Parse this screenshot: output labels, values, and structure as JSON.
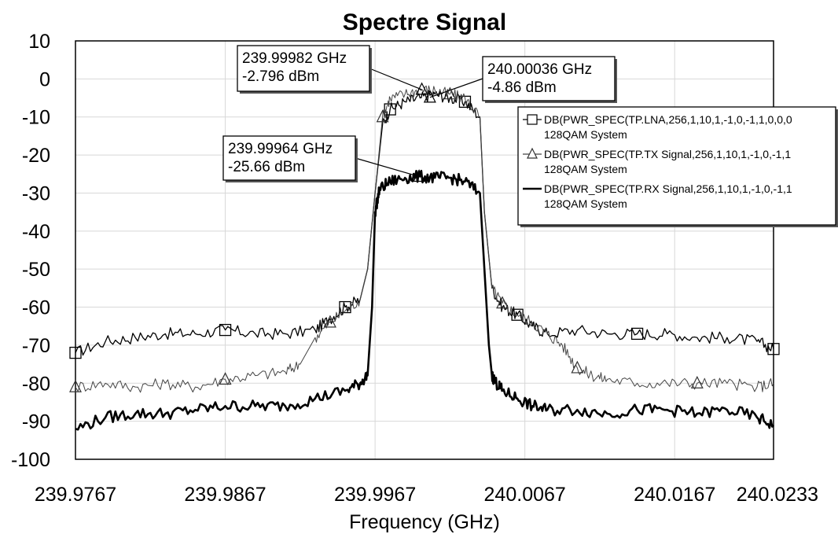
{
  "chart_data": {
    "type": "line",
    "title": "Spectre Signal",
    "xlabel": "Frequency (GHz)",
    "ylabel": "",
    "xlim": [
      239.9767,
      240.0233
    ],
    "ylim": [
      -100,
      10
    ],
    "x_ticks": [
      "239.9767",
      "239.9867",
      "239.9967",
      "240.0067",
      "240.0167",
      "240.0233"
    ],
    "y_ticks": [
      "10",
      "0",
      "-10",
      "-20",
      "-30",
      "-40",
      "-50",
      "-60",
      "-70",
      "-80",
      "-90",
      "-100"
    ],
    "grid": true,
    "legend_position": "top-right",
    "series": [
      {
        "name": "DB(PWR_SPEC(TP.LNA,256,1,10,1,-1,0,-1,1,0,0,0",
        "subname": "128QAM System",
        "marker": "square",
        "color": "#000000",
        "x": [
          239.9767,
          239.9787,
          239.9807,
          239.9827,
          239.9847,
          239.9867,
          239.9887,
          239.9907,
          239.9927,
          239.9937,
          239.9947,
          239.9957,
          239.9962,
          239.9967,
          239.9972,
          239.9977,
          239.9987,
          239.9997,
          240.0007,
          240.0017,
          240.0027,
          240.0037,
          240.004,
          240.0045,
          240.0052,
          240.0062,
          240.0072,
          240.0082,
          240.0102,
          240.0122,
          240.0142,
          240.0162,
          240.0182,
          240.0202,
          240.0222,
          240.0233
        ],
        "values": [
          -72,
          -69,
          -68,
          -67,
          -67,
          -66,
          -67,
          -67,
          -66,
          -63,
          -60,
          -58,
          -50,
          -30,
          -12,
          -8,
          -6,
          -5,
          -4,
          -5,
          -6,
          -10,
          -35,
          -55,
          -60,
          -62,
          -65,
          -67,
          -66,
          -67,
          -67,
          -67,
          -68,
          -68,
          -69,
          -71
        ]
      },
      {
        "name": "DB(PWR_SPEC(TP.TX Signal,256,1,10,1,-1,0,-1,1",
        "subname": "128QAM System",
        "marker": "triangle",
        "color": "#444444",
        "x": [
          239.9767,
          239.9787,
          239.9807,
          239.9827,
          239.9847,
          239.9867,
          239.9887,
          239.9907,
          239.9917,
          239.9927,
          239.9937,
          239.9947,
          239.9957,
          239.9962,
          239.9967,
          239.9972,
          239.9977,
          239.9987,
          239.9997,
          240.0007,
          240.0017,
          240.0027,
          240.0037,
          240.004,
          240.0045,
          240.0052,
          240.0062,
          240.0072,
          240.0082,
          240.0092,
          240.0102,
          240.0112,
          240.0122,
          240.0142,
          240.0162,
          240.0182,
          240.0202,
          240.0222,
          240.0233
        ],
        "values": [
          -81,
          -80,
          -81,
          -80,
          -81,
          -79,
          -78,
          -77,
          -75,
          -68,
          -64,
          -61,
          -58,
          -50,
          -30,
          -10,
          -5,
          -4,
          -2.8,
          -3,
          -4,
          -5,
          -10,
          -35,
          -55,
          -59,
          -62,
          -64,
          -67,
          -70,
          -76,
          -78,
          -79,
          -80,
          -80,
          -80,
          -80,
          -81,
          -80
        ]
      },
      {
        "name": "DB(PWR_SPEC(TP.RX Signal,256,1,10,1,-1,0,-1,1",
        "subname": "128QAM System",
        "marker": "none",
        "color": "#000000",
        "x": [
          239.9767,
          239.9787,
          239.9807,
          239.9827,
          239.9847,
          239.9867,
          239.9887,
          239.9907,
          239.9927,
          239.9947,
          239.9957,
          239.9962,
          239.9965,
          239.9967,
          239.997,
          239.9977,
          239.9987,
          239.9997,
          240.0007,
          240.0017,
          240.0027,
          240.0037,
          240.004,
          240.0043,
          240.0045,
          240.0048,
          240.0052,
          240.0062,
          240.0072,
          240.0082,
          240.0102,
          240.0122,
          240.0142,
          240.0162,
          240.0182,
          240.0202,
          240.0222,
          240.0233
        ],
        "values": [
          -92,
          -89,
          -88,
          -88,
          -87,
          -86,
          -86,
          -86,
          -84,
          -82,
          -80,
          -78,
          -60,
          -35,
          -29,
          -27,
          -26,
          -25.66,
          -26,
          -26,
          -27,
          -30,
          -50,
          -70,
          -78,
          -80,
          -82,
          -84,
          -86,
          -87,
          -87,
          -88,
          -87,
          -87,
          -88,
          -87,
          -89,
          -91
        ]
      }
    ],
    "annotations": [
      {
        "line1": "239.99982 GHz",
        "line2": "-2.796 dBm",
        "x": 239.99982,
        "y": -2.796
      },
      {
        "line1": "240.00036 GHz",
        "line2": "-4.86 dBm",
        "x": 240.00036,
        "y": -4.86
      },
      {
        "line1": "239.99964 GHz",
        "line2": "-25.66 dBm",
        "x": 239.99964,
        "y": -25.66
      }
    ]
  }
}
